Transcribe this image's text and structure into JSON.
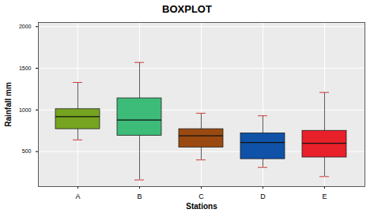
{
  "chart_data": {
    "type": "boxplot",
    "title": "BOXPLOT",
    "x_label": "Stations",
    "y_label": "Rainfall mm",
    "categories": [
      "A",
      "B",
      "C",
      "D",
      "E"
    ],
    "whisker_low": [
      640,
      160,
      400,
      310,
      200
    ],
    "q1": [
      770,
      690,
      550,
      410,
      430
    ],
    "median": [
      920,
      880,
      690,
      610,
      600
    ],
    "q3": [
      1010,
      1140,
      770,
      720,
      750
    ],
    "whisker_high": [
      1330,
      1570,
      960,
      930,
      1210
    ],
    "colors": [
      "#76a420",
      "#3dbb78",
      "#9a4a10",
      "#0f52a8",
      "#e8202a"
    ],
    "ylim": [
      80,
      2050
    ],
    "yticks": [
      500,
      1000,
      1500,
      2000
    ],
    "grid": true
  }
}
